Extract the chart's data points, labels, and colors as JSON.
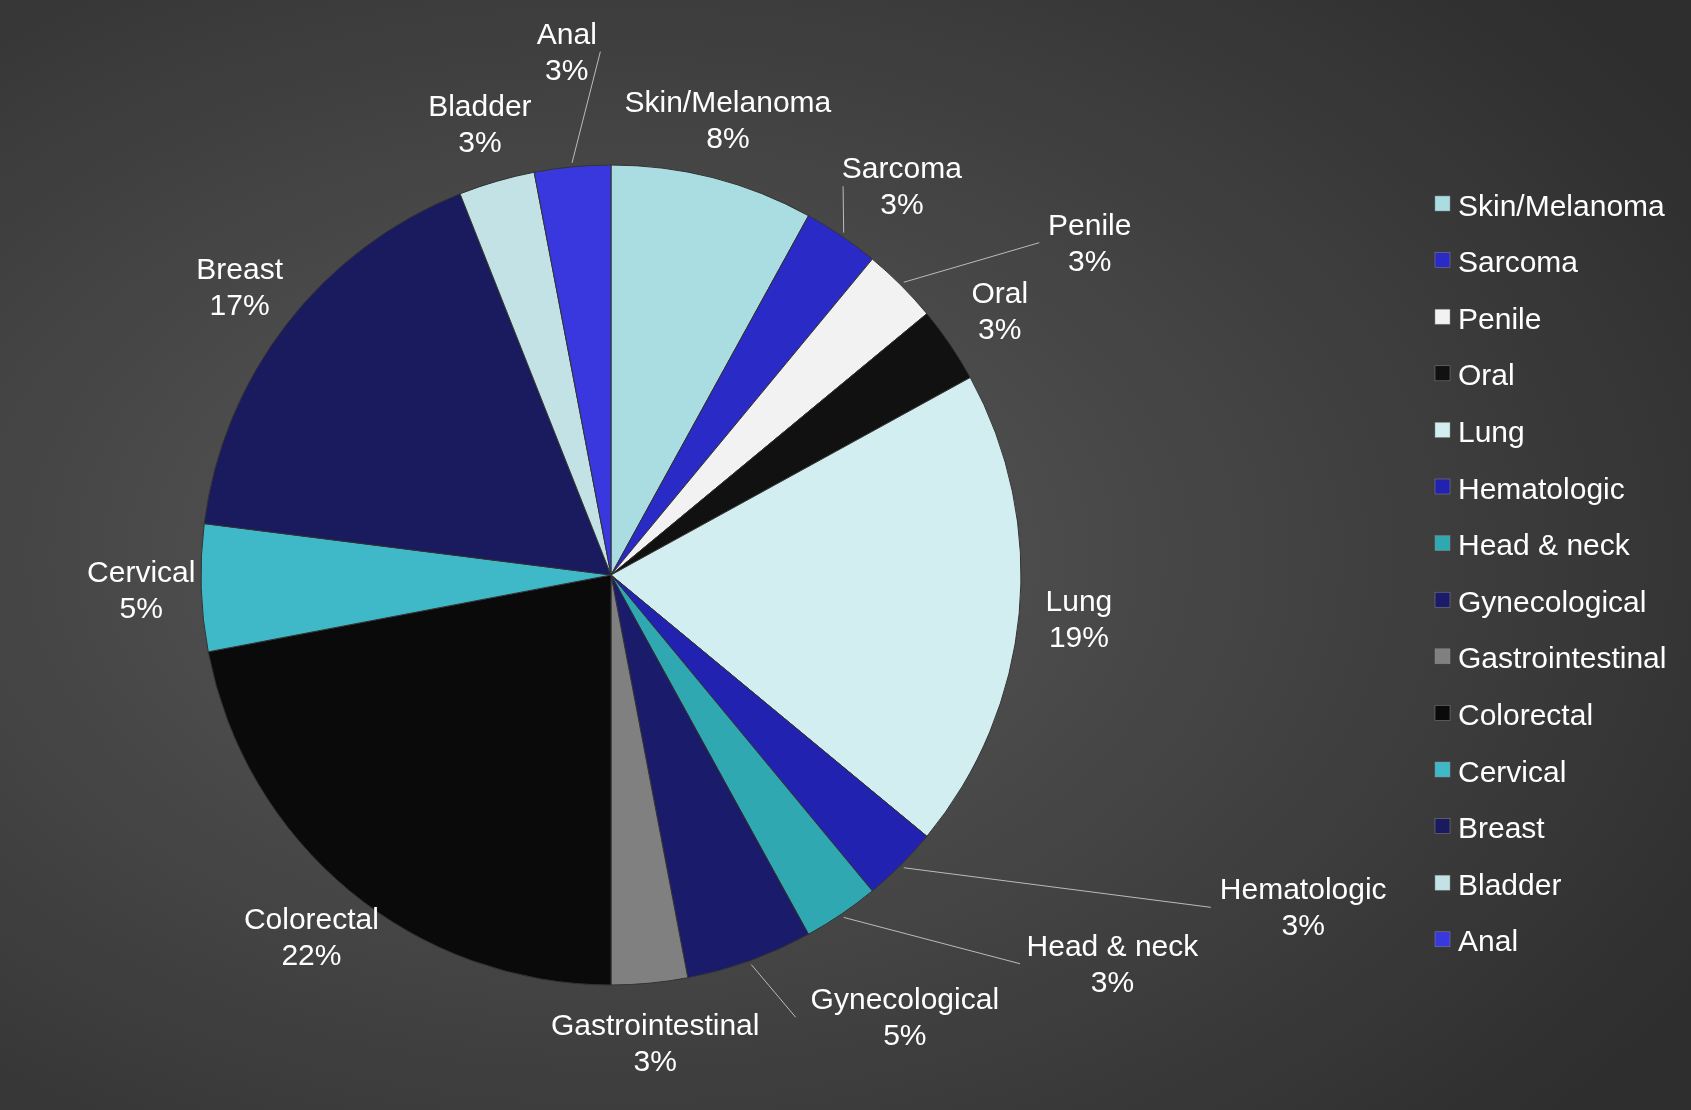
{
  "chart_data": {
    "type": "pie",
    "categories": [
      "Skin/Melanoma",
      "Sarcoma",
      "Penile",
      "Oral",
      "Lung",
      "Hematologic",
      "Head & neck",
      "Gynecological",
      "Gastrointestinal",
      "Colorectal",
      "Cervical",
      "Breast",
      "Bladder",
      "Anal"
    ],
    "values": [
      8,
      3,
      3,
      3,
      19,
      3,
      3,
      5,
      3,
      22,
      5,
      17,
      3,
      3
    ],
    "colors": [
      "#a9dde2",
      "#2a2ac6",
      "#f2f2f2",
      "#111111",
      "#d2eef1",
      "#2222b0",
      "#2fa8b2",
      "#1b1b6c",
      "#808080",
      "#0a0a0a",
      "#3fb8c8",
      "#1a1a5e",
      "#c2e2e6",
      "#3838de"
    ],
    "value_labels": [
      "8%",
      "3%",
      "3%",
      "3%",
      "19%",
      "3%",
      "3%",
      "5%",
      "3%",
      "22%",
      "5%",
      "17%",
      "3%",
      "3%"
    ],
    "legend": "right"
  }
}
